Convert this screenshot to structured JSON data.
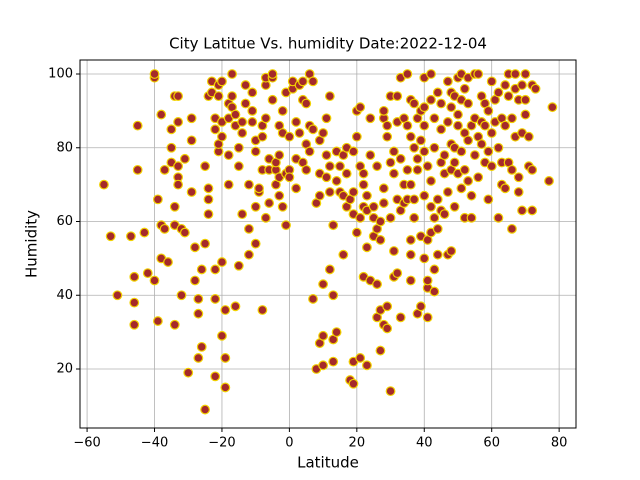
{
  "chart_data": {
    "type": "scatter",
    "title": "City Latitue Vs. humidity Date:2022-12-04",
    "x_label": "Latitude",
    "y_label": "Humidity",
    "xlim": [
      -62.1,
      85.0
    ],
    "ylim": [
      4.0,
      103.8
    ],
    "xticks": [
      {
        "value": -60,
        "label": "−60"
      },
      {
        "value": -40,
        "label": "−40"
      },
      {
        "value": -20,
        "label": "−20"
      },
      0,
      20,
      40,
      60,
      80
    ],
    "yticks": [
      20,
      40,
      60,
      80,
      100
    ],
    "grid": true,
    "color": "#a52a2a",
    "edgecolor": "#f2d100",
    "x": [
      -55,
      -53,
      -51,
      -47,
      -46,
      -46,
      -46,
      -45,
      -45,
      -43,
      -42,
      -40,
      -40,
      -40,
      -39,
      -39,
      -38,
      -38,
      -38,
      -37,
      -37,
      -36,
      -35,
      -35,
      -35,
      -34,
      -34,
      -34,
      -34,
      -33,
      -33,
      -33,
      -33,
      -33,
      -32,
      -32,
      -31,
      -31,
      -30,
      -29,
      -29,
      -29,
      -28,
      -28,
      -27,
      -27,
      -27,
      -26,
      -26,
      -25,
      -25,
      -25,
      -24,
      -24,
      -24,
      -24,
      -23,
      -23,
      -22,
      -22,
      -22,
      -22,
      -22,
      -21,
      -21,
      -21,
      -21,
      -20,
      -20,
      -20,
      -20,
      -20,
      -19,
      -19,
      -19,
      -18,
      -18,
      -18,
      -18,
      -17,
      -17,
      -17,
      -16,
      -16,
      -16,
      -15,
      -15,
      -15,
      -14,
      -14,
      -14,
      -13,
      -13,
      -12,
      -12,
      -12,
      -11,
      -11,
      -11,
      -10,
      -10,
      -10,
      -10,
      -9,
      -9,
      -8,
      -8,
      -8,
      -8,
      -7,
      -7,
      -7,
      -7,
      -6,
      -6,
      -6,
      -5,
      -5,
      -5,
      -4,
      -4,
      -4,
      -3,
      -3,
      -3,
      -3,
      -2,
      -2,
      -2,
      -1,
      -1,
      -1,
      0,
      0,
      0,
      1,
      1,
      2,
      2,
      2,
      3,
      3,
      4,
      4,
      4,
      5,
      5,
      5,
      6,
      6,
      6,
      7,
      7,
      7,
      8,
      8,
      9,
      9,
      9,
      9,
      10,
      10,
      10,
      10,
      11,
      11,
      11,
      12,
      12,
      12,
      12,
      13,
      13,
      13,
      13,
      14,
      14,
      14,
      15,
      15,
      16,
      16,
      16,
      17,
      17,
      17,
      18,
      18,
      19,
      19,
      19,
      19,
      19,
      20,
      20,
      20,
      21,
      21,
      21,
      21,
      22,
      22,
      22,
      22,
      23,
      23,
      23,
      23,
      24,
      24,
      24,
      25,
      25,
      25,
      26,
      26,
      26,
      26,
      27,
      27,
      27,
      27,
      28,
      28,
      28,
      28,
      28,
      29,
      29,
      29,
      29,
      30,
      30,
      30,
      30,
      31,
      31,
      31,
      31,
      32,
      32,
      32,
      32,
      33,
      33,
      33,
      33,
      34,
      34,
      34,
      35,
      35,
      35,
      35,
      36,
      36,
      36,
      36,
      36,
      36,
      37,
      37,
      37,
      37,
      38,
      38,
      38,
      38,
      39,
      39,
      39,
      39,
      40,
      40,
      40,
      40,
      40,
      40,
      41,
      41,
      41,
      41,
      41,
      42,
      42,
      42,
      42,
      42,
      43,
      43,
      43,
      43,
      43,
      44,
      44,
      44,
      44,
      45,
      45,
      45,
      45,
      46,
      46,
      46,
      47,
      47,
      47,
      47,
      48,
      48,
      48,
      48,
      48,
      49,
      49,
      49,
      49,
      50,
      50,
      50,
      50,
      51,
      51,
      51,
      51,
      52,
      52,
      52,
      52,
      53,
      53,
      53,
      53,
      54,
      54,
      54,
      55,
      55,
      55,
      56,
      56,
      56,
      57,
      57,
      57,
      58,
      58,
      58,
      59,
      59,
      59,
      60,
      60,
      60,
      61,
      61,
      62,
      62,
      62,
      63,
      63,
      63,
      64,
      64,
      64,
      65,
      65,
      65,
      66,
      66,
      66,
      67,
      67,
      67,
      68,
      68,
      68,
      69,
      69,
      69,
      70,
      70,
      70,
      71,
      71,
      72,
      72,
      72,
      73,
      77,
      78
    ],
    "values": [
      70,
      56,
      40,
      56,
      45,
      38,
      32,
      74,
      86,
      57,
      46,
      44,
      99,
      100,
      33,
      66,
      59,
      50,
      89,
      74,
      58,
      49,
      76,
      80,
      85,
      64,
      59,
      32,
      94,
      94,
      87,
      75,
      72,
      70,
      58,
      40,
      57,
      77,
      19,
      82,
      68,
      88,
      44,
      53,
      35,
      39,
      23,
      26,
      47,
      54,
      75,
      9,
      62,
      69,
      66,
      94,
      98,
      95,
      18,
      39,
      47,
      85,
      88,
      97,
      94,
      79,
      81,
      98,
      29,
      49,
      83,
      87,
      15,
      23,
      36,
      70,
      88,
      92,
      78,
      91,
      94,
      100,
      89,
      86,
      37,
      75,
      80,
      48,
      62,
      84,
      87,
      97,
      92,
      70,
      58,
      51,
      87,
      90,
      95,
      79,
      82,
      64,
      54,
      68,
      69,
      36,
      74,
      83,
      86,
      97,
      99,
      61,
      88,
      77,
      74,
      65,
      99,
      93,
      100,
      74,
      70,
      76,
      67,
      72,
      86,
      78,
      90,
      84,
      64,
      59,
      73,
      95,
      74,
      83,
      72,
      96,
      98,
      69,
      77,
      87,
      84,
      97,
      98,
      93,
      76,
      81,
      92,
      74,
      79,
      100,
      86,
      39,
      98,
      85,
      20,
      65,
      67,
      73,
      82,
      27,
      29,
      43,
      21,
      84,
      72,
      88,
      78,
      75,
      68,
      47,
      94,
      28,
      22,
      40,
      59,
      30,
      71,
      79,
      75,
      68,
      78,
      51,
      67,
      64,
      73,
      80,
      66,
      17,
      16,
      22,
      62,
      79,
      68,
      90,
      57,
      83,
      75,
      61,
      91,
      23,
      73,
      64,
      45,
      70,
      21,
      67,
      53,
      63,
      78,
      88,
      44,
      56,
      61,
      64,
      34,
      58,
      75,
      43,
      25,
      55,
      36,
      60,
      69,
      88,
      65,
      90,
      32,
      31,
      86,
      83,
      37,
      94,
      76,
      61,
      14,
      79,
      73,
      45,
      52,
      94,
      87,
      66,
      46,
      34,
      63,
      99,
      77,
      65,
      88,
      70,
      100,
      74,
      86,
      66,
      51,
      55,
      44,
      93,
      83,
      70,
      66,
      61,
      92,
      80,
      35,
      88,
      77,
      74,
      90,
      82,
      56,
      37,
      99,
      91,
      86,
      79,
      67,
      50,
      34,
      55,
      42,
      44,
      75,
      57,
      71,
      64,
      100,
      93,
      41,
      47,
      61,
      88,
      80,
      66,
      95,
      58,
      51,
      63,
      76,
      85,
      92,
      73,
      62,
      78,
      87,
      98,
      68,
      51,
      74,
      81,
      95,
      91,
      52,
      94,
      80,
      64,
      76,
      99,
      86,
      73,
      89,
      100,
      93,
      69,
      79,
      61,
      96,
      84,
      74,
      99,
      92,
      82,
      71,
      86,
      61,
      67,
      100,
      88,
      78,
      100,
      83,
      72,
      94,
      87,
      81,
      92,
      86,
      76,
      66,
      79,
      90,
      98,
      84,
      75,
      93,
      87,
      61,
      80,
      95,
      70,
      88,
      76,
      69,
      97,
      86,
      94,
      100,
      76,
      58,
      88,
      74,
      100,
      83,
      96,
      72,
      93,
      68,
      97,
      84,
      63,
      100,
      93,
      89,
      75,
      83,
      74,
      63,
      97,
      96,
      71,
      91
    ]
  }
}
